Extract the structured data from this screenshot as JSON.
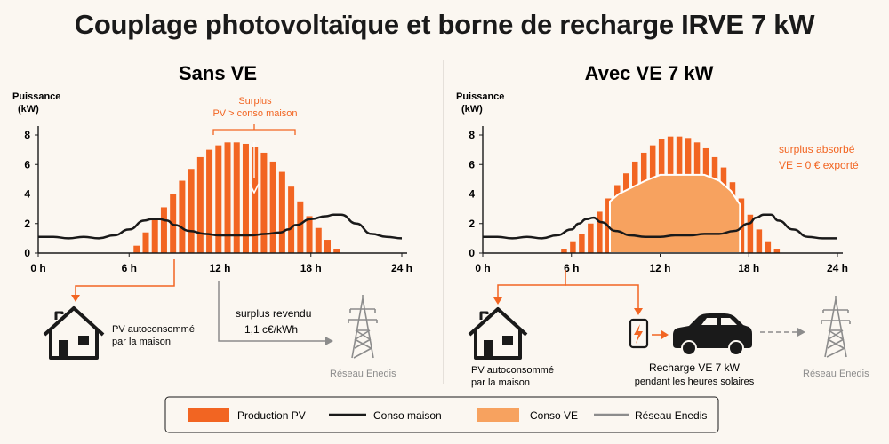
{
  "title": "Couplage photovoltaïque et borne de recharge IRVE 7 kW",
  "colors": {
    "pv": "#f26522",
    "ve": "#f7a25f",
    "house": "#1a1a1a",
    "grid": "#8c8c8c",
    "accent": "#f26522",
    "background": "#fbf7f1"
  },
  "left_panel": {
    "title": "Sans VE",
    "ylabel_line1": "Puissance",
    "ylabel_line2": "(kW)",
    "annotation_line1": "Surplus",
    "annotation_line2": "PV > conso maison",
    "house_label_line1": "PV autoconsommé",
    "house_label_line2": "par la maison",
    "surplus_line1": "surplus revendu",
    "surplus_line2": "1,1 c€/kWh",
    "grid_label": "Réseau Enedis",
    "house_icon": "house-icon",
    "pylon_icon": "power-pylon-icon"
  },
  "right_panel": {
    "title": "Avec VE 7 kW",
    "ylabel_line1": "Puissance",
    "ylabel_line2": "(kW)",
    "annotation_line1": "surplus absorbé",
    "annotation_line2": "VE = 0 € exporté",
    "house_label_line1": "PV autoconsommé",
    "house_label_line2": "par la maison",
    "charger_label_line1": "Recharge VE 7 kW",
    "charger_label_line2": "pendant les heures solaires",
    "grid_label": "Réseau Enedis",
    "house_icon": "house-icon",
    "charger_icon": "ev-charger-icon",
    "car_icon": "car-icon",
    "pylon_icon": "power-pylon-icon"
  },
  "legend": [
    {
      "label": "Production PV",
      "kind": "swatch",
      "color": "#f26522"
    },
    {
      "label": "Conso maison",
      "kind": "line",
      "color": "#1a1a1a"
    },
    {
      "label": "Conso VE",
      "kind": "swatch",
      "color": "#f7a25f"
    },
    {
      "label": "Réseau Enedis",
      "kind": "line",
      "color": "#8c8c8c"
    }
  ],
  "chart_data": [
    {
      "type": "bar",
      "title": "Sans VE",
      "ylabel": "Puissance (kW)",
      "xlim": [
        0,
        24
      ],
      "ylim": [
        0,
        8
      ],
      "xticks": [
        0,
        6,
        12,
        18,
        24
      ],
      "xtick_labels": [
        "0 h",
        "6 h",
        "12 h",
        "18 h",
        "24 h"
      ],
      "yticks": [
        0,
        2,
        4,
        6,
        8
      ],
      "ytick_labels": [
        "0",
        "2",
        "4",
        "6",
        "8"
      ],
      "series": [
        {
          "name": "Production PV",
          "type": "bar",
          "x": [
            6.5,
            7.1,
            7.7,
            8.3,
            8.9,
            9.5,
            10.1,
            10.7,
            11.3,
            11.9,
            12.5,
            13.1,
            13.7,
            14.3,
            14.9,
            15.5,
            16.1,
            16.7,
            17.3,
            17.9,
            18.5,
            19.1,
            19.7
          ],
          "y": [
            0.5,
            1.4,
            2.3,
            3.1,
            4.0,
            4.9,
            5.7,
            6.5,
            7.0,
            7.3,
            7.5,
            7.5,
            7.4,
            7.2,
            6.8,
            6.2,
            5.5,
            4.5,
            3.5,
            2.5,
            1.7,
            0.9,
            0.3
          ]
        },
        {
          "name": "Conso maison",
          "type": "line",
          "x": [
            0,
            1,
            2,
            3,
            4,
            5,
            6,
            7,
            7.5,
            8,
            8.5,
            9,
            10,
            11,
            12,
            13,
            14,
            15,
            16,
            16.5,
            17,
            18,
            19,
            19.5,
            20,
            21,
            22,
            23,
            24
          ],
          "y": [
            1.1,
            1.1,
            1.0,
            1.1,
            1.0,
            1.2,
            1.6,
            2.2,
            2.3,
            2.3,
            2.2,
            1.9,
            1.5,
            1.3,
            1.2,
            1.2,
            1.2,
            1.3,
            1.4,
            1.6,
            1.9,
            2.3,
            2.5,
            2.6,
            2.6,
            2.0,
            1.3,
            1.1,
            1.0
          ]
        }
      ]
    },
    {
      "type": "bar",
      "title": "Avec VE 7 kW",
      "ylabel": "Puissance (kW)",
      "xlim": [
        0,
        24
      ],
      "ylim": [
        0,
        8
      ],
      "xticks": [
        0,
        6,
        12,
        18,
        24
      ],
      "xtick_labels": [
        "0 h",
        "6 h",
        "12 h",
        "18 h",
        "24 h"
      ],
      "yticks": [
        0,
        2,
        4,
        6,
        8
      ],
      "ytick_labels": [
        "0",
        "2",
        "4",
        "6",
        "8"
      ],
      "series": [
        {
          "name": "Production PV",
          "type": "bar",
          "x": [
            5.5,
            6.1,
            6.7,
            7.3,
            7.9,
            8.5,
            9.1,
            9.7,
            10.3,
            10.9,
            11.5,
            12.1,
            12.7,
            13.3,
            13.9,
            14.5,
            15.1,
            15.7,
            16.3,
            16.9,
            17.5,
            18.1,
            18.7,
            19.3,
            19.9
          ],
          "y": [
            0.3,
            0.8,
            1.3,
            2.0,
            2.8,
            3.7,
            4.6,
            5.4,
            6.2,
            6.8,
            7.3,
            7.7,
            7.9,
            7.9,
            7.8,
            7.5,
            7.1,
            6.5,
            5.8,
            4.8,
            3.7,
            2.6,
            1.6,
            0.8,
            0.3
          ]
        },
        {
          "name": "Conso VE",
          "type": "area",
          "x": [
            8.6,
            9.2,
            10.0,
            11.0,
            12.0,
            13.0,
            14.0,
            15.0,
            16.0,
            16.8,
            17.4
          ],
          "y": [
            3.5,
            4.0,
            4.4,
            4.9,
            5.3,
            5.3,
            5.3,
            5.3,
            4.9,
            4.2,
            3.3
          ]
        },
        {
          "name": "Conso maison",
          "type": "line",
          "x": [
            0,
            1,
            2,
            3,
            4,
            5,
            6,
            6.5,
            7,
            7.5,
            8,
            9,
            10,
            11,
            12,
            13,
            14,
            15,
            16,
            17,
            18,
            18.5,
            19,
            19.5,
            20,
            21,
            22,
            23,
            24
          ],
          "y": [
            1.1,
            1.1,
            1.0,
            1.1,
            1.0,
            1.2,
            1.6,
            2.0,
            2.3,
            2.4,
            2.1,
            1.5,
            1.2,
            1.1,
            1.1,
            1.2,
            1.2,
            1.3,
            1.3,
            1.5,
            2.0,
            2.4,
            2.6,
            2.6,
            2.2,
            1.6,
            1.1,
            1.0,
            1.0
          ]
        }
      ]
    }
  ]
}
